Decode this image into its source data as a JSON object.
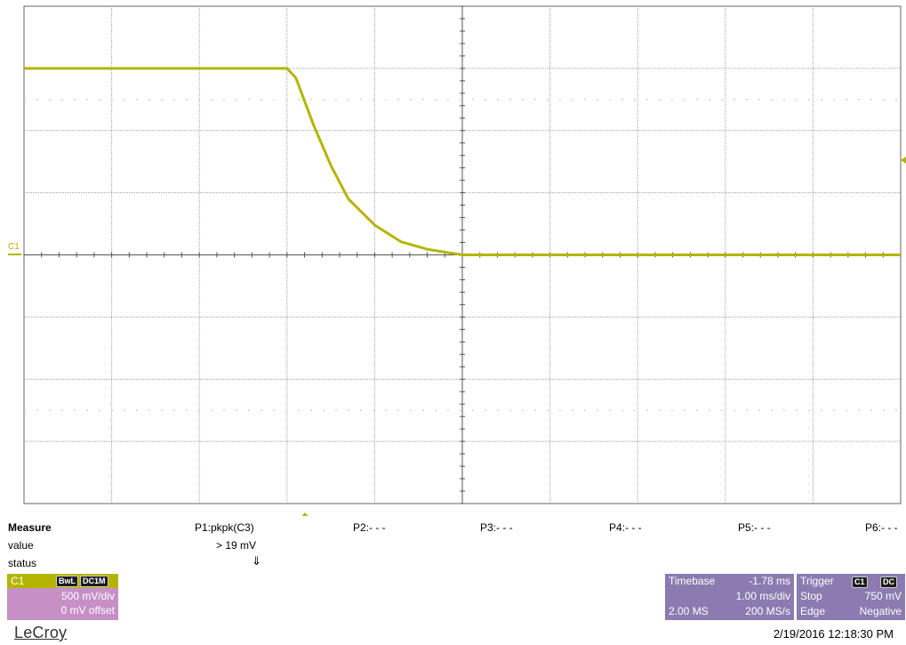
{
  "scope": {
    "channel_label": "C1",
    "trace_color": "#b4b400",
    "grid_color": "#a0a0a0",
    "trace_description_points": [
      {
        "t": 0.0,
        "v": 1.0
      },
      {
        "t": 0.3,
        "v": 1.0
      },
      {
        "t": 0.31,
        "v": 0.95
      },
      {
        "t": 0.33,
        "v": 0.7
      },
      {
        "t": 0.35,
        "v": 0.48
      },
      {
        "t": 0.37,
        "v": 0.3
      },
      {
        "t": 0.4,
        "v": 0.16
      },
      {
        "t": 0.43,
        "v": 0.07
      },
      {
        "t": 0.46,
        "v": 0.03
      },
      {
        "t": 0.5,
        "v": 0.0
      },
      {
        "t": 1.0,
        "v": 0.0
      }
    ]
  },
  "measure": {
    "title": "Measure",
    "row_value_label": "value",
    "row_status_label": "status",
    "p1_header": "P1:pkpk(C3)",
    "p1_value": "> 19 mV",
    "p1_status_icon": "down-arrow-status-icon",
    "p1_status_glyph": "⇓",
    "p2_header": "P2:- - -",
    "p3_header": "P3:- - -",
    "p4_header": "P4:- - -",
    "p5_header": "P5:- - -",
    "p6_header": "P6:- - -"
  },
  "channel_box": {
    "name": "C1",
    "badge1": "BwL",
    "badge2": "DC1M",
    "volts_per_div": "500 mV/div",
    "offset": "0 mV offset",
    "header_color": "#b4b400",
    "body_color": "#c690c6"
  },
  "timebase_box": {
    "label": "Timebase",
    "delay": "-1.78 ms",
    "time_per_div": "1.00 ms/div",
    "samples": "2.00 MS",
    "sample_rate": "200 MS/s",
    "body_color": "#8c7bb0"
  },
  "trigger_box": {
    "label": "Trigger",
    "badge1": "C1",
    "badge2": "DC",
    "mode": "Stop",
    "level": "750 mV",
    "type": "Edge",
    "slope": "Negative",
    "body_color": "#8c7bb0"
  },
  "footer": {
    "brand": "LeCroy",
    "timestamp": "2/19/2016 12:18:30 PM"
  }
}
